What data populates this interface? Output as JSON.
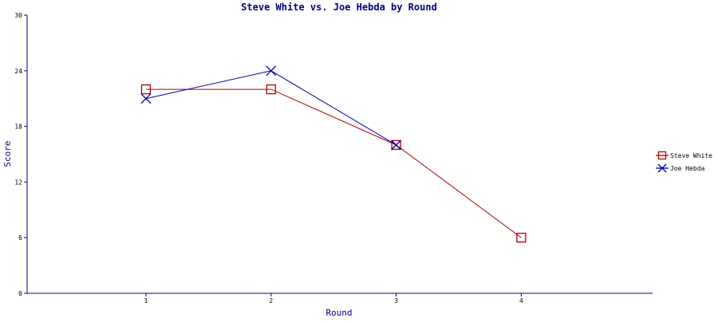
{
  "chart_data": {
    "type": "line",
    "title": "Steve White vs. Joe Hebda by Round",
    "xlabel": "Round",
    "ylabel": "Score",
    "categories": [
      "1",
      "2",
      "3",
      "4"
    ],
    "x": [
      1,
      2,
      3,
      4
    ],
    "xlim": [
      0.05,
      5.05
    ],
    "ylim": [
      0,
      30
    ],
    "y_ticks": [
      0,
      6,
      12,
      18,
      24,
      30
    ],
    "grid": false,
    "legend_position": "right",
    "series": [
      {
        "name": "Steve White",
        "marker": "square",
        "color": "#b00000",
        "x": [
          1,
          2,
          3,
          4
        ],
        "values": [
          22,
          22,
          16,
          6
        ]
      },
      {
        "name": "Joe Hebda",
        "marker": "x",
        "color": "#0000b0",
        "x": [
          1,
          2,
          3
        ],
        "values": [
          21,
          24,
          16
        ]
      }
    ],
    "axis_color": "#000080",
    "title_color": "#000080"
  }
}
